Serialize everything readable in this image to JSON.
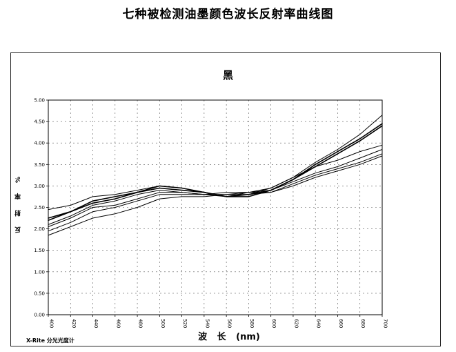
{
  "page_title": "七种被检测油墨颜色波长反射率曲线图",
  "footer": "X-Rite  分光光度计",
  "chart_data": {
    "type": "line",
    "title": "黑",
    "xlabel": "波 长 (nm)",
    "ylabel": "反 射 率 %",
    "xlim": [
      400,
      700
    ],
    "ylim": [
      0,
      5
    ],
    "x_ticks": [
      "400",
      "420",
      "440",
      "460",
      "480",
      "500",
      "520",
      "540",
      "560",
      "580",
      "600",
      "620",
      "640",
      "660",
      "680",
      "700"
    ],
    "y_ticks": [
      "0.00",
      "0.50",
      "1.00",
      "1.50",
      "2.00",
      "2.50",
      "3.00",
      "3.50",
      "4.00",
      "4.50",
      "5.00"
    ],
    "grid": true,
    "legend": "none",
    "x": [
      400,
      420,
      440,
      460,
      480,
      500,
      520,
      540,
      560,
      580,
      600,
      620,
      640,
      660,
      680,
      700
    ],
    "series": [
      {
        "values": [
          2.45,
          2.55,
          2.75,
          2.8,
          2.9,
          3.0,
          2.95,
          2.85,
          2.75,
          2.8,
          2.95,
          3.2,
          3.55,
          3.85,
          4.2,
          4.65
        ]
      },
      {
        "values": [
          2.25,
          2.4,
          2.65,
          2.75,
          2.85,
          2.95,
          2.9,
          2.85,
          2.75,
          2.75,
          2.9,
          3.15,
          3.5,
          3.8,
          4.1,
          4.45
        ]
      },
      {
        "values": [
          2.2,
          2.4,
          2.6,
          2.7,
          2.85,
          3.0,
          2.95,
          2.85,
          2.75,
          2.8,
          2.9,
          3.15,
          3.45,
          3.75,
          4.05,
          4.4
        ]
      },
      {
        "values": [
          2.1,
          2.3,
          2.55,
          2.65,
          2.8,
          2.9,
          2.85,
          2.8,
          2.75,
          2.85,
          2.95,
          3.2,
          3.45,
          3.6,
          3.8,
          3.95
        ]
      },
      {
        "values": [
          2.05,
          2.25,
          2.5,
          2.55,
          2.7,
          2.85,
          2.85,
          2.8,
          2.8,
          2.85,
          2.9,
          3.1,
          3.3,
          3.45,
          3.65,
          3.85
        ]
      },
      {
        "values": [
          1.95,
          2.15,
          2.4,
          2.5,
          2.65,
          2.8,
          2.8,
          2.8,
          2.85,
          2.85,
          2.85,
          3.05,
          3.25,
          3.4,
          3.55,
          3.75
        ]
      },
      {
        "values": [
          1.85,
          2.05,
          2.25,
          2.35,
          2.5,
          2.7,
          2.75,
          2.75,
          2.8,
          2.8,
          2.85,
          3.0,
          3.2,
          3.35,
          3.5,
          3.7
        ]
      }
    ]
  }
}
